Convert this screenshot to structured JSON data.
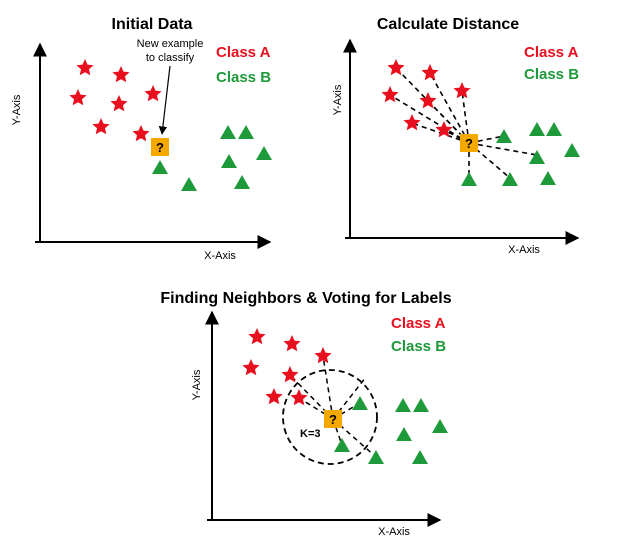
{
  "colors": {
    "class_a": "#e8101e",
    "class_b": "#1f9a3a",
    "query": "#f5a800",
    "axis": "#000000"
  },
  "panels": [
    {
      "title": "Initial Data",
      "xlabel": "X-Axis",
      "ylabel": "Y-Axis",
      "legend": {
        "class_a": "Class A",
        "class_b": "Class B"
      },
      "annotation": {
        "line1": "New example",
        "line2": "to classify"
      },
      "query_symbol": "?"
    },
    {
      "title": "Calculate Distance",
      "xlabel": "X-Axis",
      "ylabel": "Y-Axis",
      "legend": {
        "class_a": "Class A",
        "class_b": "Class B"
      },
      "query_symbol": "?"
    },
    {
      "title": "Finding Neighbors & Voting for Labels",
      "xlabel": "X-Axis",
      "ylabel": "Y-Axis",
      "legend": {
        "class_a": "Class A",
        "class_b": "Class B"
      },
      "k_label": "K=3",
      "query_symbol": "?"
    }
  ]
}
